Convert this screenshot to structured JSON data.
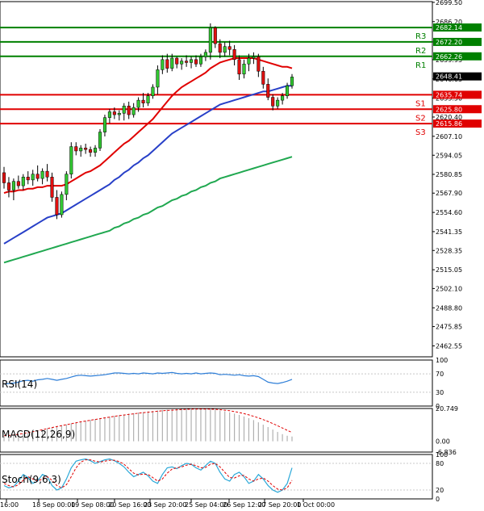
{
  "colors": {
    "up": "#32c832",
    "down": "#e01010",
    "wick": "#000000",
    "ma_fast": "#e00000",
    "ma_mid": "#2840c8",
    "ma_slow": "#20a850",
    "resistance": "#008000",
    "support": "#e00000",
    "rsi": "#2f7fd8",
    "macd_hist": "#b0b0b0",
    "macd_signal": "#e00000",
    "stoch_k": "#2aa8d8",
    "stoch_d": "#e00000"
  },
  "chart_data": [
    {
      "type": "candlestick",
      "panel": "price",
      "ylim": [
        2455,
        2700
      ],
      "y_ticks": [
        "2699.50",
        "2686.20",
        "2672.20",
        "2659.95",
        "2646.65",
        "2633.50",
        "2620.40",
        "2607.10",
        "2594.05",
        "2580.85",
        "2567.90",
        "2554.60",
        "2541.35",
        "2528.35",
        "2515.05",
        "2502.10",
        "2488.80",
        "2475.85",
        "2462.55"
      ],
      "x_labels": [
        "16:00",
        "18 Sep 00:00",
        "19 Sep 08:00",
        "20 Sep 16:00",
        "23 Sep 20:00",
        "25 Sep 04:00",
        "26 Sep 12:00",
        "27 Sep 20:00",
        "1 Oct 00:00"
      ],
      "last_price": "2648.41",
      "levels": [
        {
          "name": "R3",
          "value": 2682.14,
          "label": "2682.14",
          "kind": "resistance"
        },
        {
          "name": "R2",
          "value": 2672.2,
          "label": "2672.20",
          "kind": "resistance"
        },
        {
          "name": "R1",
          "value": 2662.26,
          "label": "2662.26",
          "kind": "resistance"
        },
        {
          "name": "S1",
          "value": 2635.74,
          "label": "2635.74",
          "kind": "support"
        },
        {
          "name": "S2",
          "value": 2625.8,
          "label": "2625.80",
          "kind": "support"
        },
        {
          "name": "S3",
          "value": 2615.86,
          "label": "2615.86",
          "kind": "support"
        }
      ],
      "candles": [
        [
          2582,
          2586,
          2571,
          2575
        ],
        [
          2575,
          2579,
          2565,
          2570
        ],
        [
          2570,
          2578,
          2563,
          2576
        ],
        [
          2576,
          2580,
          2571,
          2573
        ],
        [
          2573,
          2581,
          2570,
          2579
        ],
        [
          2579,
          2583,
          2574,
          2577
        ],
        [
          2577,
          2584,
          2573,
          2581
        ],
        [
          2581,
          2587,
          2576,
          2578
        ],
        [
          2578,
          2585,
          2574,
          2583
        ],
        [
          2583,
          2588,
          2576,
          2579
        ],
        [
          2579,
          2582,
          2562,
          2565
        ],
        [
          2565,
          2570,
          2550,
          2553
        ],
        [
          2553,
          2569,
          2551,
          2567
        ],
        [
          2567,
          2583,
          2563,
          2581
        ],
        [
          2581,
          2603,
          2578,
          2600
        ],
        [
          2600,
          2603,
          2594,
          2597
        ],
        [
          2597,
          2601,
          2593,
          2599
        ],
        [
          2599,
          2602,
          2595,
          2598
        ],
        [
          2598,
          2600,
          2593,
          2596
        ],
        [
          2596,
          2601,
          2593,
          2599
        ],
        [
          2599,
          2612,
          2597,
          2610
        ],
        [
          2610,
          2622,
          2607,
          2620
        ],
        [
          2620,
          2626,
          2616,
          2624
        ],
        [
          2624,
          2627,
          2619,
          2622
        ],
        [
          2622,
          2625,
          2618,
          2623
        ],
        [
          2623,
          2630,
          2618,
          2628
        ],
        [
          2628,
          2631,
          2619,
          2622
        ],
        [
          2622,
          2630,
          2620,
          2627
        ],
        [
          2627,
          2634,
          2624,
          2632
        ],
        [
          2632,
          2637,
          2627,
          2630
        ],
        [
          2630,
          2637,
          2628,
          2635
        ],
        [
          2635,
          2643,
          2633,
          2641
        ],
        [
          2641,
          2656,
          2636,
          2653
        ],
        [
          2653,
          2663,
          2650,
          2660
        ],
        [
          2660,
          2664,
          2651,
          2654
        ],
        [
          2654,
          2664,
          2652,
          2661
        ],
        [
          2661,
          2662,
          2654,
          2657
        ],
        [
          2657,
          2661,
          2653,
          2659
        ],
        [
          2659,
          2663,
          2655,
          2658
        ],
        [
          2658,
          2662,
          2654,
          2660
        ],
        [
          2660,
          2663,
          2655,
          2657
        ],
        [
          2657,
          2664,
          2655,
          2662
        ],
        [
          2662,
          2667,
          2659,
          2665
        ],
        [
          2665,
          2685,
          2660,
          2682
        ],
        [
          2682,
          2683,
          2668,
          2671
        ],
        [
          2671,
          2674,
          2661,
          2665
        ],
        [
          2665,
          2672,
          2662,
          2669
        ],
        [
          2669,
          2673,
          2663,
          2667
        ],
        [
          2667,
          2670,
          2656,
          2660
        ],
        [
          2660,
          2663,
          2646,
          2650
        ],
        [
          2650,
          2660,
          2647,
          2657
        ],
        [
          2657,
          2664,
          2652,
          2661
        ],
        [
          2661,
          2665,
          2657,
          2662
        ],
        [
          2662,
          2664,
          2648,
          2652
        ],
        [
          2652,
          2655,
          2640,
          2643
        ],
        [
          2643,
          2647,
          2632,
          2634
        ],
        [
          2634,
          2636,
          2625,
          2628
        ],
        [
          2628,
          2634,
          2626,
          2632
        ],
        [
          2632,
          2637,
          2629,
          2635
        ],
        [
          2635,
          2644,
          2633,
          2642
        ],
        [
          2642,
          2650,
          2640,
          2648
        ]
      ],
      "ma_fast": [
        2568,
        2569,
        2569,
        2570,
        2570,
        2571,
        2571,
        2572,
        2572,
        2573,
        2573,
        2573,
        2573,
        2574,
        2576,
        2578,
        2580,
        2582,
        2583,
        2585,
        2587,
        2590,
        2593,
        2596,
        2599,
        2602,
        2604,
        2607,
        2610,
        2613,
        2616,
        2619,
        2623,
        2627,
        2631,
        2635,
        2638,
        2641,
        2643,
        2645,
        2647,
        2649,
        2651,
        2654,
        2656,
        2658,
        2659,
        2660,
        2661,
        2661,
        2661,
        2661,
        2661,
        2660,
        2659,
        2658,
        2657,
        2656,
        2655,
        2655,
        2654
      ],
      "ma_mid": [
        2533,
        2535,
        2537,
        2539,
        2541,
        2543,
        2545,
        2547,
        2549,
        2551,
        2552,
        2553,
        2554,
        2556,
        2558,
        2560,
        2562,
        2564,
        2566,
        2568,
        2570,
        2572,
        2574,
        2577,
        2579,
        2582,
        2584,
        2587,
        2589,
        2592,
        2594,
        2597,
        2600,
        2603,
        2606,
        2609,
        2611,
        2613,
        2615,
        2617,
        2619,
        2621,
        2623,
        2625,
        2627,
        2629,
        2630,
        2631,
        2632,
        2633,
        2634,
        2635,
        2636,
        2637,
        2638,
        2638,
        2639,
        2640,
        2641,
        2642,
        2642
      ],
      "ma_slow": [
        2520,
        2521,
        2522,
        2523,
        2524,
        2525,
        2526,
        2527,
        2528,
        2529,
        2530,
        2531,
        2532,
        2533,
        2534,
        2535,
        2536,
        2537,
        2538,
        2539,
        2540,
        2541,
        2542,
        2544,
        2545,
        2547,
        2548,
        2550,
        2551,
        2553,
        2554,
        2556,
        2558,
        2559,
        2561,
        2563,
        2564,
        2566,
        2567,
        2569,
        2570,
        2572,
        2573,
        2575,
        2576,
        2578,
        2579,
        2580,
        2581,
        2582,
        2583,
        2584,
        2585,
        2586,
        2587,
        2588,
        2589,
        2590,
        2591,
        2592,
        2593
      ]
    },
    {
      "type": "line",
      "panel": "rsi",
      "label": "RSI(14)",
      "ylim": [
        0,
        100
      ],
      "y_ticks": [
        "100",
        "70",
        "30",
        "0"
      ],
      "values": [
        48,
        49,
        50,
        52,
        55,
        56,
        54,
        57,
        58,
        60,
        58,
        56,
        58,
        60,
        63,
        66,
        67,
        66,
        65,
        66,
        67,
        68,
        70,
        72,
        72,
        71,
        70,
        71,
        70,
        72,
        71,
        70,
        72,
        71,
        72,
        73,
        71,
        70,
        71,
        70,
        72,
        70,
        71,
        72,
        71,
        68,
        69,
        68,
        67,
        68,
        66,
        65,
        66,
        64,
        58,
        52,
        50,
        49,
        51,
        54,
        58
      ]
    },
    {
      "type": "bar",
      "panel": "macd",
      "label": "MACD(12,26,9)",
      "ylim": [
        -6.836,
        20.749
      ],
      "y_ticks": [
        "20.749",
        "0.00",
        "-6.836"
      ],
      "hist": [
        3.0,
        3.4,
        3.8,
        4.2,
        4.8,
        5.5,
        6.2,
        6.8,
        7.5,
        8.2,
        9.0,
        9.5,
        10.0,
        10.6,
        11.3,
        12.0,
        12.6,
        13.1,
        13.6,
        14.1,
        14.6,
        15.1,
        15.6,
        16.1,
        16.5,
        17.0,
        17.4,
        17.8,
        18.2,
        18.5,
        18.9,
        19.2,
        19.5,
        19.8,
        20.0,
        20.2,
        20.4,
        20.5,
        20.6,
        20.7,
        20.6,
        20.5,
        20.4,
        20.2,
        19.9,
        19.5,
        19.0,
        18.3,
        17.5,
        16.7,
        15.7,
        14.6,
        13.4,
        12.0,
        10.5,
        9.0,
        7.4,
        5.9,
        4.5,
        3.5,
        3.0
      ],
      "signal": [
        3.5,
        3.7,
        4.0,
        4.4,
        4.9,
        5.5,
        6.1,
        6.7,
        7.3,
        8.0,
        8.7,
        9.3,
        9.9,
        10.5,
        11.1,
        11.7,
        12.3,
        12.8,
        13.3,
        13.8,
        14.3,
        14.8,
        15.3,
        15.8,
        16.2,
        16.6,
        17.0,
        17.4,
        17.8,
        18.1,
        18.4,
        18.7,
        19.0,
        19.3,
        19.5,
        19.7,
        19.9,
        20.1,
        20.2,
        20.3,
        20.4,
        20.4,
        20.4,
        20.3,
        20.2,
        20.0,
        19.7,
        19.3,
        18.8,
        18.2,
        17.5,
        16.7,
        15.8,
        14.8,
        13.7,
        12.5,
        11.2,
        9.8,
        8.4,
        6.9,
        5.6
      ]
    },
    {
      "type": "line",
      "panel": "stoch",
      "label": "Stoch(9,6,3)",
      "ylim": [
        0,
        100
      ],
      "y_ticks": [
        "100",
        "80",
        "20",
        "0"
      ],
      "k": [
        30,
        25,
        28,
        40,
        55,
        48,
        35,
        40,
        55,
        50,
        30,
        20,
        25,
        45,
        70,
        85,
        88,
        90,
        86,
        80,
        84,
        88,
        90,
        86,
        80,
        72,
        60,
        50,
        55,
        60,
        52,
        40,
        35,
        55,
        70,
        72,
        68,
        75,
        80,
        78,
        70,
        65,
        75,
        85,
        80,
        60,
        45,
        40,
        55,
        60,
        50,
        35,
        40,
        55,
        45,
        30,
        20,
        15,
        20,
        35,
        70
      ],
      "d": [
        35,
        30,
        27,
        32,
        42,
        50,
        45,
        40,
        45,
        50,
        42,
        30,
        25,
        32,
        50,
        70,
        83,
        88,
        88,
        85,
        83,
        85,
        87,
        87,
        84,
        78,
        68,
        58,
        54,
        56,
        55,
        48,
        40,
        45,
        58,
        67,
        70,
        72,
        76,
        78,
        75,
        70,
        71,
        78,
        80,
        72,
        60,
        48,
        47,
        52,
        53,
        45,
        40,
        45,
        47,
        40,
        30,
        22,
        20,
        25,
        42
      ]
    }
  ]
}
